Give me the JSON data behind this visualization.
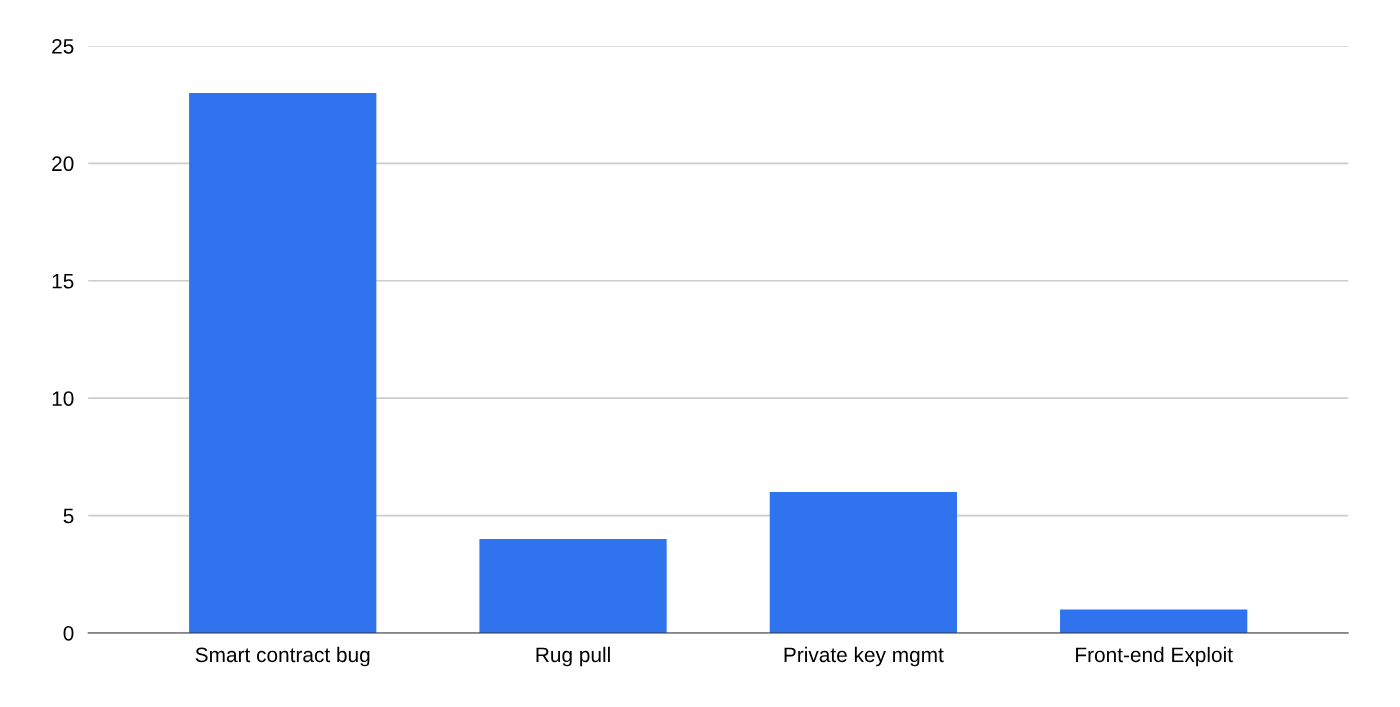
{
  "chart_data": {
    "type": "bar",
    "categories": [
      "Smart contract bug",
      "Rug pull",
      "Private key mgmt",
      "Front-end Exploit"
    ],
    "values": [
      23,
      4,
      6,
      1
    ],
    "color": "#2f73ee",
    "ylim": [
      0,
      25
    ],
    "yticks": [
      0,
      5,
      10,
      15,
      20,
      25
    ],
    "grid": "y",
    "legend": false
  }
}
